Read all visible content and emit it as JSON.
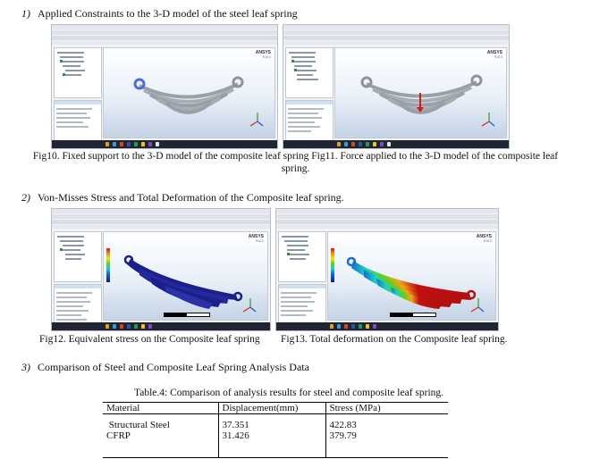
{
  "sections": [
    {
      "num": "1)",
      "text": "Applied Constraints to the 3-D model of the steel leaf spring"
    },
    {
      "num": "2)",
      "text": "Von-Misses Stress and Total Deformation of the Composite leaf spring."
    },
    {
      "num": "3)",
      "text": "Comparison of Steel and Composite Leaf Spring Analysis Data"
    }
  ],
  "figures": {
    "fig10": {
      "logo": "ANSYS",
      "logo_sub": "R18.0"
    },
    "fig11": {
      "logo": "ANSYS",
      "logo_sub": "R18.0"
    },
    "fig12": {
      "logo": "ANSYS",
      "logo_sub": "R18.0"
    },
    "fig13": {
      "logo": "ANSYS",
      "logo_sub": "R18.0"
    }
  },
  "captions": {
    "row1": "Fig10. Fixed support to the 3-D model of the composite leaf spring Fig11. Force applied to the 3-D model of the composite leaf spring.",
    "fig12": "Fig12. Equivalent stress on the Composite leaf spring",
    "fig13": "Fig13. Total deformation on the Composite leaf spring."
  },
  "table": {
    "caption": "Table.4: Comparison of analysis results for steel and composite leaf spring.",
    "headers": [
      "Material",
      "Displacement(mm)",
      "Stress (MPa)"
    ],
    "rows": [
      [
        "Structural Steel",
        "37.351",
        "422.83"
      ],
      [
        "CFRP",
        "31.426",
        "379.79"
      ]
    ]
  },
  "colors": {
    "spring_steel": "#a4a8ae",
    "force_arrow": "#d11a1a",
    "fixed_support": "#4b6fd6",
    "stress_dark": "#1b1f8c",
    "deform_red": "#c01010"
  }
}
